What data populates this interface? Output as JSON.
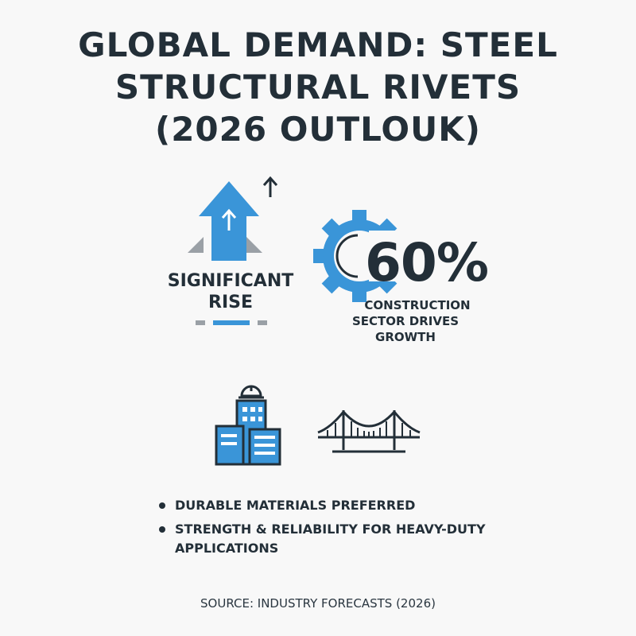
{
  "title": {
    "line1": "GLOBAL DEMAND: STEEL",
    "line2": "STRUCTURAL RIVETS",
    "line3": "(2026 OUTLOUK)"
  },
  "rise": {
    "label_line1": "SIGNIFICANT",
    "label_line2": "RISE"
  },
  "construction": {
    "percent": "60%",
    "caption_line1": "CONSTRUCTION",
    "caption_line2": "SECTOR DRIVES GROWTH"
  },
  "bullets": [
    {
      "text": "DURABLE MATERIALS PREFERRED"
    },
    {
      "text": "STRENGTH & RELIABILITY FOR HEAVY-DUTY APPLICATIONS"
    }
  ],
  "source": "SOURCE: INDUSTRY FORECASTS (2026)",
  "colors": {
    "accent_blue": "#3a95d8",
    "dark_text": "#232f38",
    "gray": "#9aa0a6",
    "background": "#f8f8f8"
  },
  "icons": [
    "up-arrow-icon",
    "gear-icon",
    "building-icon",
    "hard-hat-icon",
    "bridge-icon"
  ]
}
